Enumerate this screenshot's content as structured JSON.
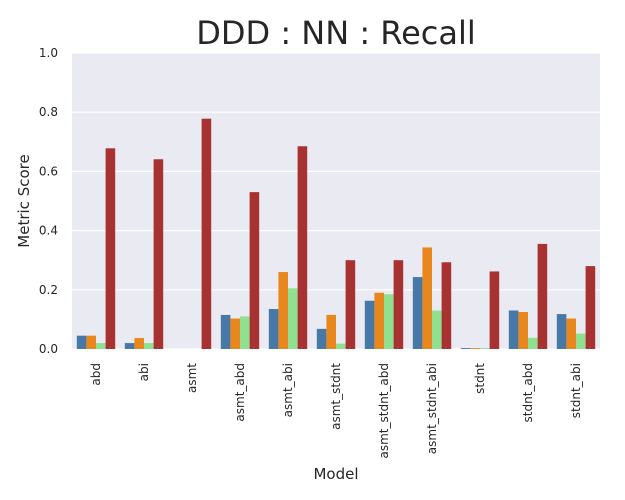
{
  "chart_data": {
    "type": "bar",
    "title": "DDD : NN : Recall",
    "xlabel": "Model",
    "ylabel": "Metric Score",
    "ylim": [
      0,
      1
    ],
    "yticks": [
      "0.0",
      "0.2",
      "0.4",
      "0.6",
      "0.8",
      "1.0"
    ],
    "grid": true,
    "legend": "none",
    "categories": [
      "abd",
      "abi",
      "asmt",
      "asmt_abd",
      "asmt_abi",
      "asmt_stdnt",
      "asmt_stdnt_abd",
      "asmt_stdnt_abi",
      "stdnt",
      "stdnt_abd",
      "stdnt_abi"
    ],
    "series": [
      {
        "color": "#4878a6",
        "values": [
          0.045,
          0.02,
          0.0,
          0.115,
          0.135,
          0.068,
          0.163,
          0.243,
          0.003,
          0.13,
          0.118
        ]
      },
      {
        "color": "#e8871e",
        "values": [
          0.045,
          0.037,
          0.0,
          0.103,
          0.26,
          0.115,
          0.19,
          0.343,
          0.003,
          0.125,
          0.103
        ]
      },
      {
        "color": "#90e090",
        "values": [
          0.02,
          0.02,
          0.0,
          0.11,
          0.205,
          0.018,
          0.185,
          0.13,
          0.003,
          0.038,
          0.052
        ]
      },
      {
        "color": "#a83232",
        "values": [
          0.678,
          0.641,
          0.778,
          0.53,
          0.685,
          0.3,
          0.3,
          0.293,
          0.262,
          0.355,
          0.28
        ]
      }
    ]
  }
}
